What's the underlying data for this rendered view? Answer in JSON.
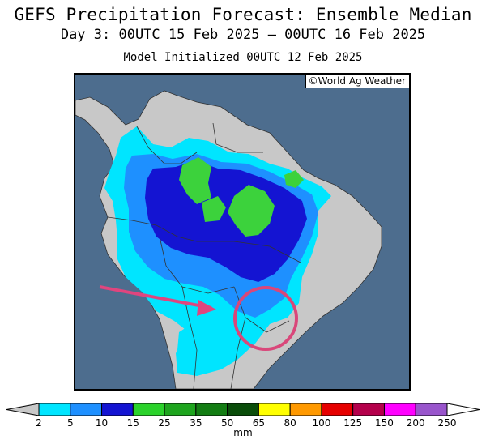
{
  "title": {
    "line1": "GEFS Precipitation Forecast: Ensemble Median",
    "line2": "Day 3: 00UTC 15 Feb 2025 — 00UTC 16 Feb 2025",
    "line3": "Model Initialized 00UTC 12 Feb 2025"
  },
  "credit": "©World Ag Weather",
  "map": {
    "ocean_color": "#4d6d8e",
    "land_color": "#c8c8c8",
    "highlight_color": "#d9477a",
    "arrow_color": "#e0457e",
    "shading_colors": {
      "light": "#00e5ff",
      "medium": "#1e90ff",
      "heavy": "#1414d2",
      "green": "#3cd23c"
    }
  },
  "legend": {
    "unit": "mm",
    "ticks": [
      "2",
      "5",
      "10",
      "15",
      "25",
      "35",
      "50",
      "65",
      "80",
      "100",
      "125",
      "150",
      "200",
      "250"
    ],
    "colors": [
      "#00e5ff",
      "#1e90ff",
      "#1414d2",
      "#2bd22b",
      "#1ea51e",
      "#137d13",
      "#0a4d0a",
      "#ffff00",
      "#ff9900",
      "#e60000",
      "#b4004b",
      "#ff00ff",
      "#9955cc"
    ],
    "end_color": "#c8c8c8"
  }
}
